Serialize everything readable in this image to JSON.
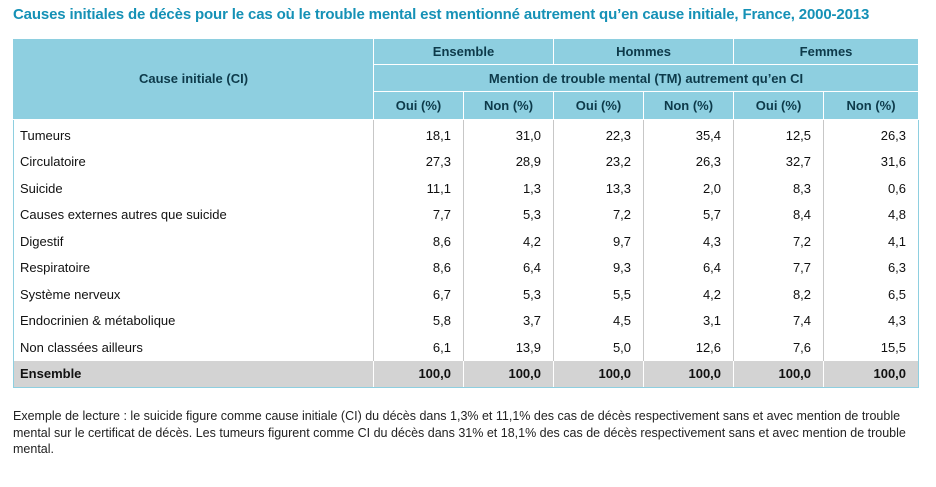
{
  "title": "Causes initiales de décès pour le cas où le trouble mental est mentionné autrement qu’en cause initiale, France, 2000-2013",
  "colors": {
    "title": "#1591b6",
    "header_bg": "#8ecfe0",
    "total_row_bg": "#d3d3d3"
  },
  "table": {
    "row_header": "Cause initiale (CI)",
    "groups": [
      "Ensemble",
      "Hommes",
      "Femmes"
    ],
    "subheader": "Mention de trouble mental (TM) autrement qu’en CI",
    "columns": [
      "Oui (%)",
      "Non (%)",
      "Oui (%)",
      "Non (%)",
      "Oui (%)",
      "Non (%)"
    ],
    "rows": [
      {
        "label": "Tumeurs",
        "values": [
          "18,1",
          "31,0",
          "22,3",
          "35,4",
          "12,5",
          "26,3"
        ]
      },
      {
        "label": "Circulatoire",
        "values": [
          "27,3",
          "28,9",
          "23,2",
          "26,3",
          "32,7",
          "31,6"
        ]
      },
      {
        "label": "Suicide",
        "values": [
          "11,1",
          "1,3",
          "13,3",
          "2,0",
          "8,3",
          "0,6"
        ]
      },
      {
        "label": "Causes externes autres que suicide",
        "values": [
          "7,7",
          "5,3",
          "7,2",
          "5,7",
          "8,4",
          "4,8"
        ]
      },
      {
        "label": "Digestif",
        "values": [
          "8,6",
          "4,2",
          "9,7",
          "4,3",
          "7,2",
          "4,1"
        ]
      },
      {
        "label": "Respiratoire",
        "values": [
          "8,6",
          "6,4",
          "9,3",
          "6,4",
          "7,7",
          "6,3"
        ]
      },
      {
        "label": "Système nerveux",
        "values": [
          "6,7",
          "5,3",
          "5,5",
          "4,2",
          "8,2",
          "6,5"
        ]
      },
      {
        "label": "Endocrinien & métabolique",
        "values": [
          "5,8",
          "3,7",
          "4,5",
          "3,1",
          "7,4",
          "4,3"
        ]
      },
      {
        "label": "Non classées ailleurs",
        "values": [
          "6,1",
          "13,9",
          "5,0",
          "12,6",
          "7,6",
          "15,5"
        ]
      }
    ],
    "total": {
      "label": "Ensemble",
      "values": [
        "100,0",
        "100,0",
        "100,0",
        "100,0",
        "100,0",
        "100,0"
      ]
    }
  },
  "note": "Exemple de lecture : le suicide figure comme cause initiale (CI) du décès dans 1,3% et 11,1% des cas de décès respectivement sans et avec mention de trouble mental sur le certificat de décès. Les tumeurs figurent comme CI du décès dans 31% et 18,1% des cas de décès respectivement sans et avec mention de trouble mental."
}
